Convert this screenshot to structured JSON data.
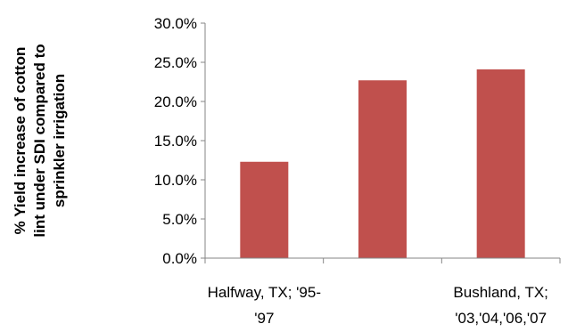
{
  "chart_data": {
    "type": "bar",
    "categories": [
      "Halfway, TX; '95-'97",
      "",
      "Bushland, TX; '03,'04,'06,'07"
    ],
    "category_label_lines": [
      [
        "Halfway, TX; '95-",
        "'97"
      ],
      [],
      [
        "Bushland, TX;",
        "'03,'04,'06,'07"
      ]
    ],
    "values": [
      0.123,
      0.227,
      0.241
    ],
    "ylim": [
      0,
      0.3
    ],
    "yticks": [
      0,
      0.05,
      0.1,
      0.15,
      0.2,
      0.25,
      0.3
    ],
    "ytick_labels": [
      "0.0%",
      "5.0%",
      "10.0%",
      "15.0%",
      "20.0%",
      "25.0%",
      "30.0%"
    ],
    "ylabel_lines": [
      "% Yield increase of cotton",
      "lint under SDI compared to",
      "sprinkler irrigation"
    ],
    "xlabel": "",
    "title": "",
    "grid": false,
    "legend": false,
    "bar_color": "#c0504d",
    "axis_color": "#868686"
  }
}
